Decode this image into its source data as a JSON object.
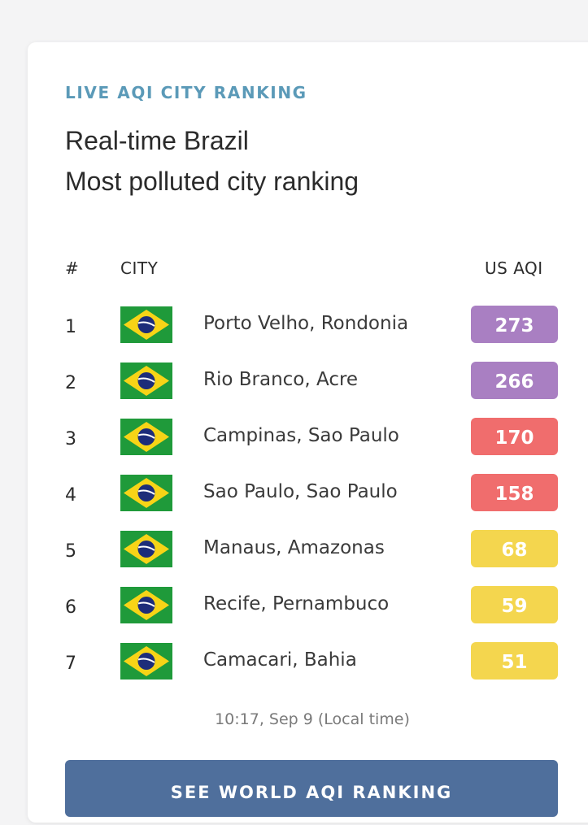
{
  "widget": {
    "eyebrow": "LIVE AQI CITY RANKING",
    "title_line1": "Real-time Brazil",
    "title_line2": "Most polluted city ranking"
  },
  "table": {
    "headers": {
      "rank": "#",
      "city": "CITY",
      "aqi": "US AQI"
    },
    "rows": [
      {
        "rank": "1",
        "city": "Porto Velho, Rondonia",
        "aqi": "273",
        "color": "#a97fc2"
      },
      {
        "rank": "2",
        "city": "Rio Branco, Acre",
        "aqi": "266",
        "color": "#a97fc2"
      },
      {
        "rank": "3",
        "city": "Campinas, Sao Paulo",
        "aqi": "170",
        "color": "#f06d6d"
      },
      {
        "rank": "4",
        "city": "Sao Paulo, Sao Paulo",
        "aqi": "158",
        "color": "#f06d6d"
      },
      {
        "rank": "5",
        "city": "Manaus, Amazonas",
        "aqi": "68",
        "color": "#f4d64e"
      },
      {
        "rank": "6",
        "city": "Recife, Pernambuco",
        "aqi": "59",
        "color": "#f4d64e"
      },
      {
        "rank": "7",
        "city": "Camacari, Bahia",
        "aqi": "51",
        "color": "#f4d64e"
      }
    ]
  },
  "footer": {
    "timestamp": "10:17, Sep 9 (Local time)",
    "cta_label": "SEE WORLD AQI RANKING"
  },
  "flag_icon": "brazil-flag-icon"
}
